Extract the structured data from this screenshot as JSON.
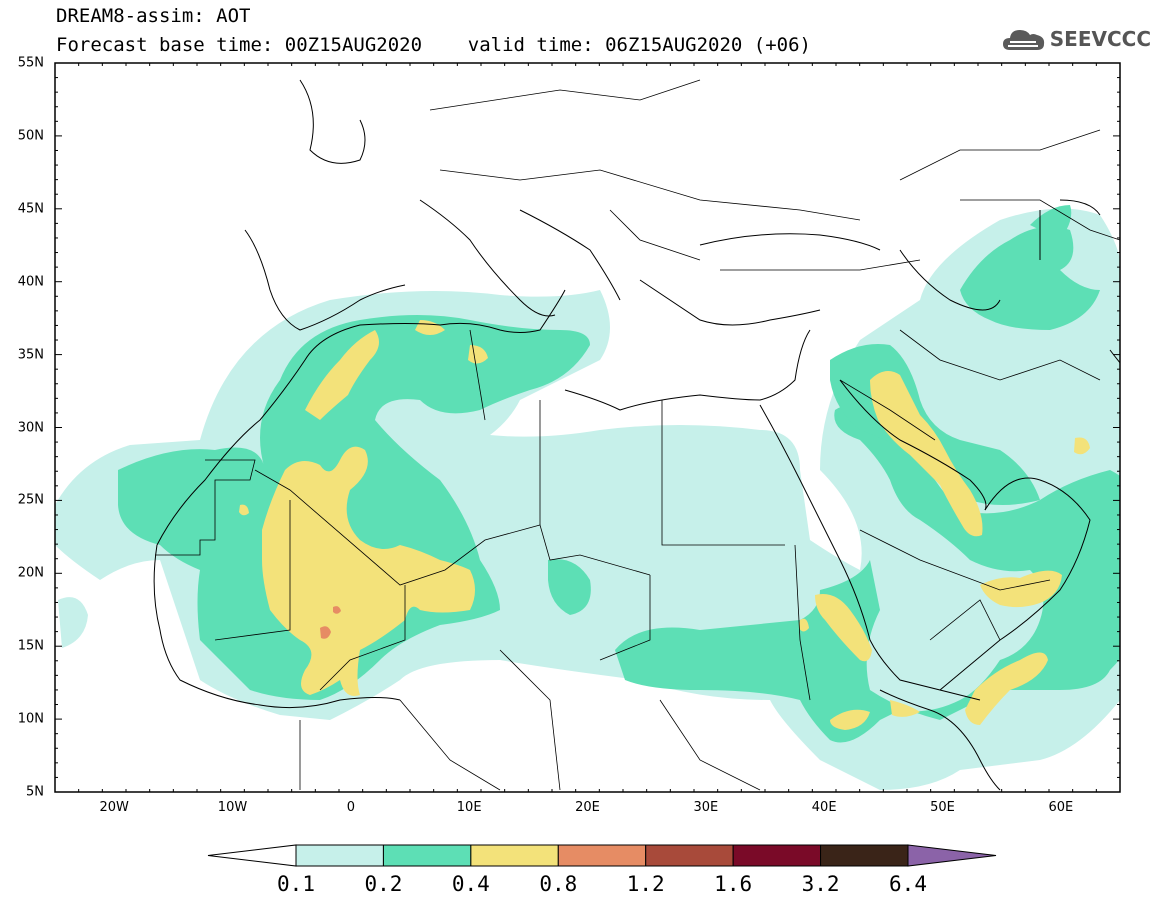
{
  "header": {
    "line1": "DREAM8-assim: AOT",
    "line2": "Forecast base time: 00Z15AUG2020    valid time: 06Z15AUG2020 (+06)"
  },
  "logo": {
    "text": "SEEVCCC",
    "icon": "cloud-icon"
  },
  "axes": {
    "lat_labels": [
      "55N",
      "50N",
      "45N",
      "40N",
      "35N",
      "30N",
      "25N",
      "20N",
      "15N",
      "10N",
      "5N"
    ],
    "lon_labels": [
      "20W",
      "10W",
      "0",
      "10E",
      "20E",
      "30E",
      "40E",
      "50E",
      "60E"
    ],
    "lat_range": [
      5,
      55
    ],
    "lon_range": [
      -25,
      65
    ]
  },
  "colorbar": {
    "labels": [
      "0.1",
      "0.2",
      "0.4",
      "0.8",
      "1.2",
      "1.6",
      "3.2",
      "6.4"
    ],
    "colors": [
      "#ffffff",
      "#c6f0ea",
      "#5ddfb5",
      "#f3e27a",
      "#e68c64",
      "#a84a3a",
      "#7a0a28",
      "#3a2418",
      "#8b63a8"
    ]
  },
  "colors": {
    "level_0_1": "#c6f0ea",
    "level_0_2": "#5ddfb5",
    "level_0_4": "#f3e27a",
    "level_0_8": "#e68c64"
  }
}
